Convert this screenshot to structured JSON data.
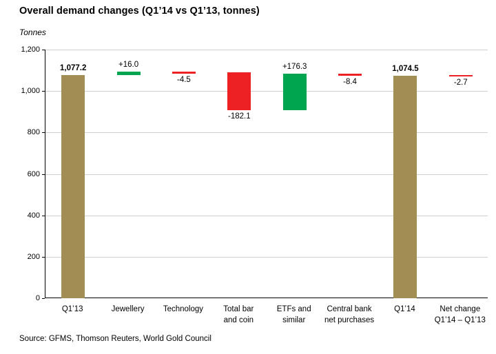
{
  "chart_data": {
    "type": "bar",
    "subtype": "waterfall",
    "title": "Overall demand changes (Q1’14 vs Q1’13, tonnes)",
    "ylabel": "Tonnes",
    "xlabel": "",
    "ylim": [
      0,
      1200
    ],
    "yticks": [
      0,
      200,
      400,
      600,
      800,
      1000,
      1200
    ],
    "ytick_labels": [
      "0",
      "200",
      "400",
      "600",
      "800",
      "1,000",
      "1,200"
    ],
    "grid": true,
    "legend": false,
    "source": "Source: GFMS, Thomson Reuters, World Gold Council",
    "colors": {
      "total": "#a28e55",
      "increase": "#00a64f",
      "decrease": "#ed2024"
    },
    "bars": [
      {
        "name": "Q1’13",
        "lines": [
          "Q1’13"
        ],
        "kind": "total",
        "value": 1077.2,
        "label": "1,077.2",
        "label_pos": "above"
      },
      {
        "name": "Jewellery",
        "lines": [
          "Jewellery"
        ],
        "kind": "increase",
        "value": 16.0,
        "label": "+16.0",
        "label_pos": "above"
      },
      {
        "name": "Technology",
        "lines": [
          "Technology"
        ],
        "kind": "decrease",
        "value": -4.5,
        "label": "-4.5",
        "label_pos": "below"
      },
      {
        "name": "Total bar and coin",
        "lines": [
          "Total bar",
          "and coin"
        ],
        "kind": "decrease",
        "value": -182.1,
        "label": "-182.1",
        "label_pos": "below"
      },
      {
        "name": "ETFs and similar",
        "lines": [
          "ETFs and",
          "similar"
        ],
        "kind": "increase",
        "value": 176.3,
        "label": "+176.3",
        "label_pos": "above"
      },
      {
        "name": "Central bank net purchases",
        "lines": [
          "Central bank",
          "net purchases"
        ],
        "kind": "decrease",
        "value": -8.4,
        "label": "-8.4",
        "label_pos": "below"
      },
      {
        "name": "Q1’14",
        "lines": [
          "Q1’14"
        ],
        "kind": "total",
        "value": 1074.5,
        "label": "1,074.5",
        "label_pos": "above"
      },
      {
        "name": "Net change Q1’14 – Q1’13",
        "lines": [
          "Net change",
          "Q1’14 – Q1’13"
        ],
        "kind": "decrease",
        "value": -2.7,
        "label": "-2.7",
        "label_pos": "below",
        "start": 1077.2
      }
    ]
  }
}
